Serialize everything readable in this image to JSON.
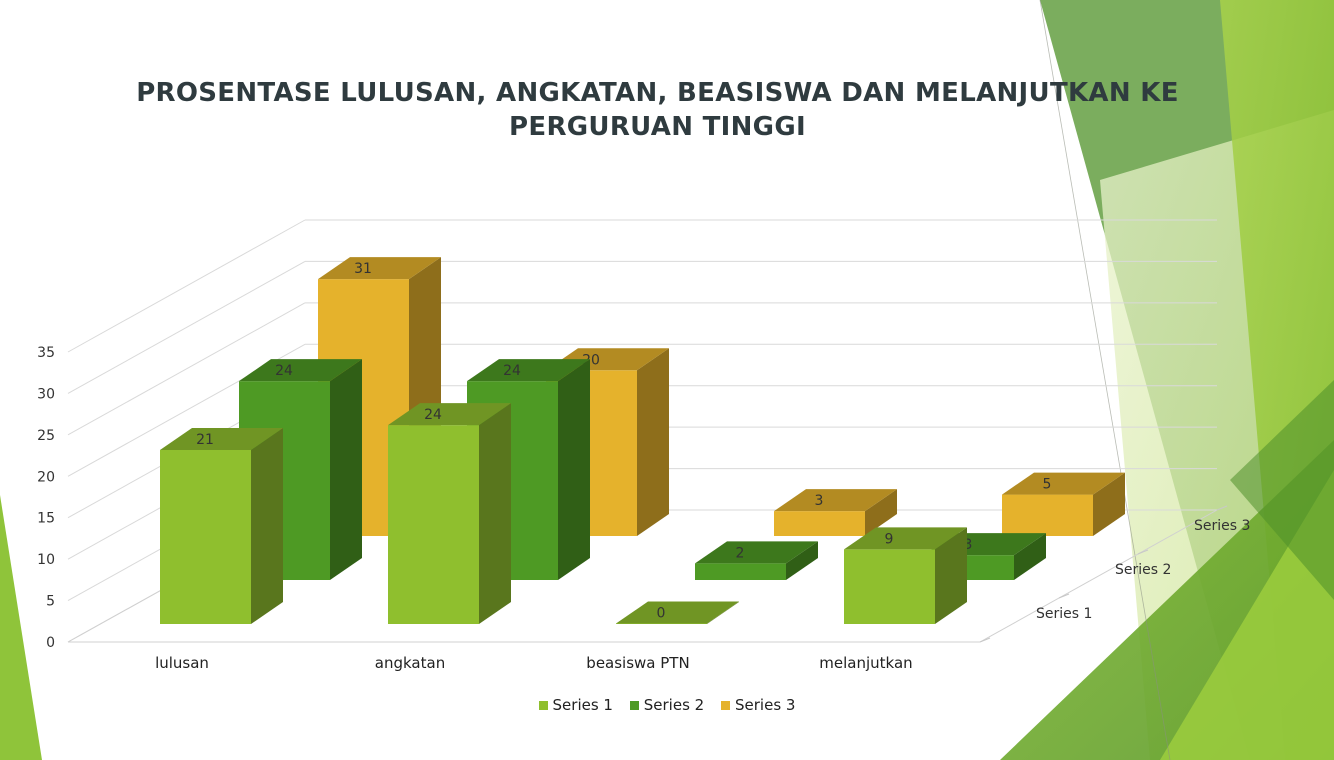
{
  "chart_data": {
    "type": "bar",
    "title": "PROSENTASE LULUSAN, ANGKATAN, BEASISWA DAN MELANJUTKAN KE PERGURUAN TINGGI",
    "categories": [
      "lulusan",
      "angkatan",
      "beasiswa PTN",
      "melanjutkan"
    ],
    "series": [
      {
        "name": "Series 1",
        "values": [
          21,
          24,
          0,
          9
        ],
        "color": "#8fbf2e"
      },
      {
        "name": "Series 2",
        "values": [
          24,
          24,
          2,
          3
        ],
        "color": "#4e9a24"
      },
      {
        "name": "Series 3",
        "values": [
          31,
          20,
          3,
          5
        ],
        "color": "#e5b22c"
      }
    ],
    "y_ticks": [
      "0",
      "5",
      "10",
      "15",
      "20",
      "25",
      "30",
      "35"
    ],
    "ylim": [
      0,
      35
    ],
    "depth_labels": [
      "Series 1",
      "Series 2",
      "Series 3"
    ],
    "grid": true,
    "legend_position": "bottom",
    "projection": "3d"
  }
}
